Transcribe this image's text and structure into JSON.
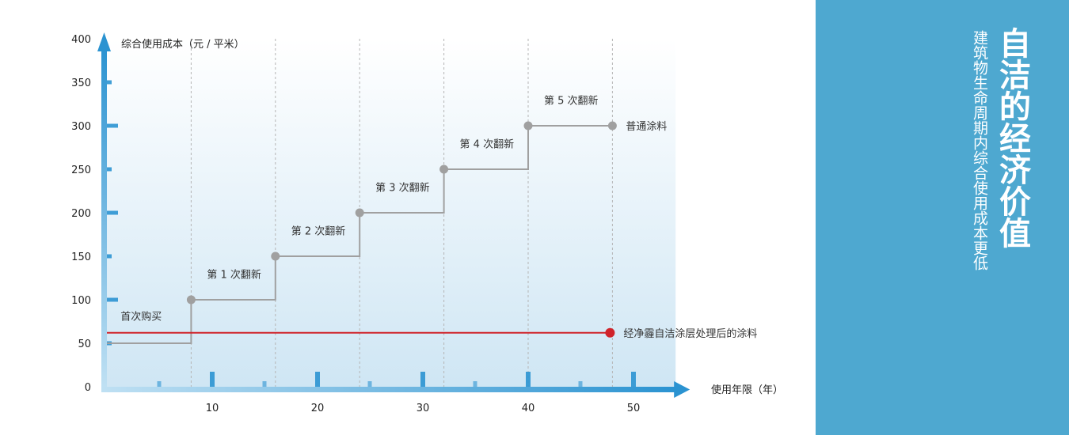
{
  "chart_data": {
    "type": "line",
    "ylabel": "综合使用成本（元 / 平米）",
    "xlabel": "使用年限（年）",
    "xlim": [
      0,
      54
    ],
    "ylim": [
      0,
      400
    ],
    "x_ticks": [
      10,
      20,
      30,
      40,
      50
    ],
    "y_ticks": [
      0,
      50,
      100,
      150,
      200,
      250,
      300,
      350,
      400
    ],
    "grid": "vertical-dashed",
    "series": [
      {
        "name": "普通涂料",
        "color": "#a0a0a0",
        "x": [
          0,
          8,
          8,
          16,
          16,
          24,
          24,
          32,
          32,
          40,
          40,
          48
        ],
        "y": [
          50,
          50,
          100,
          100,
          150,
          150,
          200,
          200,
          250,
          250,
          300,
          300
        ]
      },
      {
        "name": "经净霾自洁涂层处理后的涂料",
        "color": "#d0232a",
        "x": [
          0,
          48
        ],
        "y": [
          62,
          62
        ]
      }
    ],
    "annotations": [
      {
        "text": "首次购买",
        "x": 1.3,
        "y": 77
      },
      {
        "text": "第 1 次翻新",
        "x": 9.5,
        "y": 125
      },
      {
        "text": "第 2 次翻新",
        "x": 17.5,
        "y": 175
      },
      {
        "text": "第 3 次翻新",
        "x": 25.5,
        "y": 225
      },
      {
        "text": "第 4 次翻新",
        "x": 33.5,
        "y": 275
      },
      {
        "text": "第 5 次翻新",
        "x": 41.5,
        "y": 325
      }
    ],
    "colors": {
      "axis": "#2b93d1",
      "panel": "#4ea8d0",
      "grey": "#a0a0a0",
      "red": "#d0232a"
    }
  },
  "panel": {
    "title": "自洁的经济价值",
    "subtitle": "建筑物生命周期内综合使用成本更低"
  }
}
